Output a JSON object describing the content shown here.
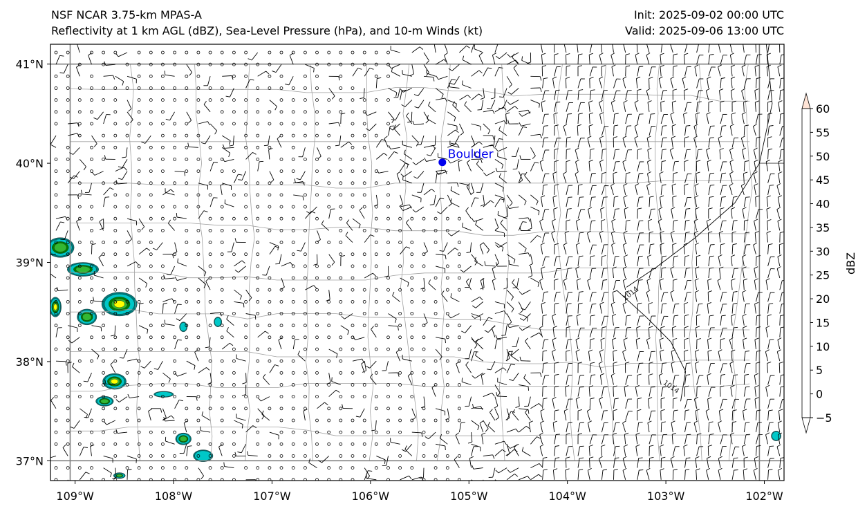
{
  "header": {
    "model": "NSF NCAR 3.75-km MPAS-A",
    "fields": "Reflectivity at 1 km AGL (dBZ), Sea-Level Pressure (hPa), and 10-m Winds (kt)",
    "init": "Init: 2025-09-02 00:00 UTC",
    "valid": "Valid: 2025-09-06 13:00 UTC"
  },
  "map": {
    "lon_range": [
      -109.25,
      -101.8
    ],
    "lat_range": [
      36.8,
      41.2
    ],
    "lon_ticks": [
      {
        "value": -109,
        "label": "109°W"
      },
      {
        "value": -108,
        "label": "108°W"
      },
      {
        "value": -107,
        "label": "107°W"
      },
      {
        "value": -106,
        "label": "106°W"
      },
      {
        "value": -105,
        "label": "105°W"
      },
      {
        "value": -104,
        "label": "104°W"
      },
      {
        "value": -103,
        "label": "103°W"
      },
      {
        "value": -102,
        "label": "102°W"
      }
    ],
    "lat_ticks": [
      {
        "value": 41,
        "label": "41°N"
      },
      {
        "value": 40,
        "label": "40°N"
      },
      {
        "value": 39,
        "label": "39°N"
      },
      {
        "value": 38,
        "label": "38°N"
      },
      {
        "value": 37,
        "label": "37°N"
      }
    ],
    "city": {
      "name": "Boulder",
      "lon": -105.27,
      "lat": 40.01,
      "color": "#0000ee"
    },
    "isobars": [
      {
        "label": "1014",
        "points": [
          [
            -101.98,
            41.2
          ],
          [
            -101.92,
            40.6
          ],
          [
            -102.05,
            40.0
          ],
          [
            -102.3,
            39.6
          ],
          [
            -102.7,
            39.25
          ],
          [
            -103.1,
            38.95
          ],
          [
            -103.4,
            38.75
          ]
        ]
      },
      {
        "label": "1014",
        "points": [
          [
            -103.5,
            38.72
          ],
          [
            -103.2,
            38.45
          ],
          [
            -102.95,
            38.2
          ],
          [
            -102.8,
            37.9
          ],
          [
            -102.85,
            37.6
          ]
        ]
      }
    ],
    "state_border_color": "#808080",
    "county_border_color": "#a0a0a0"
  },
  "colorbar": {
    "label": "dBZ",
    "ticks": [
      "−5",
      "0",
      "5",
      "10",
      "15",
      "20",
      "25",
      "30",
      "35",
      "40",
      "45",
      "50",
      "55",
      "60"
    ],
    "colors": [
      "#ffffff",
      "#007a7a",
      "#00c8c8",
      "#40e0d0",
      "#008000",
      "#33b833",
      "#ffff00",
      "#ffd500",
      "#ff8000",
      "#cc0000",
      "#8b0000",
      "#ff00ff",
      "#ffe4d6"
    ]
  },
  "reflectivity_cells": [
    {
      "lon": -109.15,
      "lat": 39.15,
      "rx": 0.14,
      "ry": 0.1,
      "max": 20
    },
    {
      "lon": -108.92,
      "lat": 38.93,
      "rx": 0.16,
      "ry": 0.07,
      "max": 20
    },
    {
      "lon": -108.55,
      "lat": 38.58,
      "rx": 0.18,
      "ry": 0.12,
      "max": 30
    },
    {
      "lon": -108.88,
      "lat": 38.45,
      "rx": 0.1,
      "ry": 0.08,
      "max": 20
    },
    {
      "lon": -109.2,
      "lat": 38.55,
      "rx": 0.06,
      "ry": 0.1,
      "max": 25
    },
    {
      "lon": -108.6,
      "lat": 37.8,
      "rx": 0.12,
      "ry": 0.08,
      "max": 30
    },
    {
      "lon": -108.7,
      "lat": 37.6,
      "rx": 0.09,
      "ry": 0.05,
      "max": 20
    },
    {
      "lon": -107.9,
      "lat": 37.22,
      "rx": 0.08,
      "ry": 0.06,
      "max": 20
    },
    {
      "lon": -107.7,
      "lat": 37.05,
      "rx": 0.1,
      "ry": 0.06,
      "max": 10
    },
    {
      "lon": -108.1,
      "lat": 37.67,
      "rx": 0.1,
      "ry": 0.03,
      "max": 10
    },
    {
      "lon": -107.55,
      "lat": 38.4,
      "rx": 0.04,
      "ry": 0.05,
      "max": 10
    },
    {
      "lon": -107.9,
      "lat": 38.35,
      "rx": 0.04,
      "ry": 0.05,
      "max": 10
    },
    {
      "lon": -108.55,
      "lat": 36.85,
      "rx": 0.06,
      "ry": 0.03,
      "max": 20
    },
    {
      "lon": -101.88,
      "lat": 37.25,
      "rx": 0.05,
      "ry": 0.05,
      "max": 10
    }
  ]
}
